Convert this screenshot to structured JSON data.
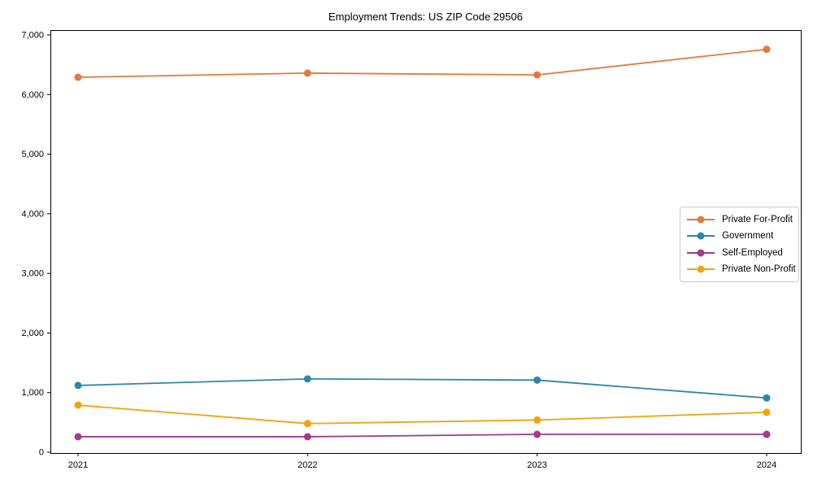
{
  "chart_data": {
    "type": "line",
    "title": "Employment Trends: US ZIP Code 29506",
    "xlabel": "",
    "ylabel": "",
    "categories": [
      "2021",
      "2022",
      "2023",
      "2024"
    ],
    "series": [
      {
        "name": "Private For-Profit",
        "color": "#e4793f",
        "values": [
          6290,
          6360,
          6330,
          6760
        ]
      },
      {
        "name": "Government",
        "color": "#2e87a9",
        "values": [
          1120,
          1230,
          1210,
          910
        ]
      },
      {
        "name": "Self-Employed",
        "color": "#a33a8a",
        "values": [
          260,
          260,
          300,
          300
        ]
      },
      {
        "name": "Private Non-Profit",
        "color": "#f3a30b",
        "values": [
          790,
          480,
          540,
          670
        ]
      }
    ],
    "ylim": [
      0,
      7000
    ],
    "yticks": [
      0,
      1000,
      2000,
      3000,
      4000,
      5000,
      6000,
      7000
    ],
    "ytick_labels": [
      "0",
      "1,000",
      "2,000",
      "3,000",
      "4,000",
      "5,000",
      "6,000",
      "7,000"
    ],
    "grid": false,
    "legend_position": "center right",
    "marker": "circle",
    "axis_color": "#000000",
    "background_color": "#ffffff"
  }
}
